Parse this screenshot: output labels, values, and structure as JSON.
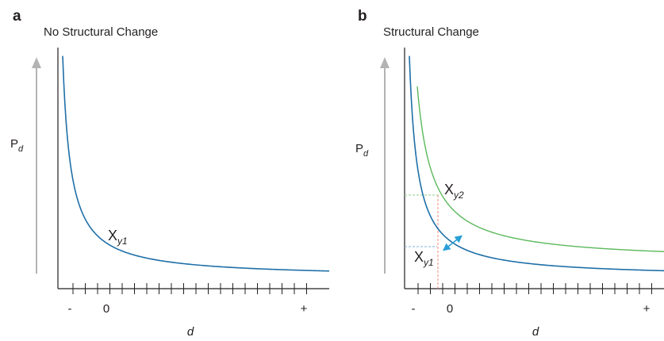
{
  "panel_a": {
    "letter": "a",
    "title": "No Structural Change",
    "ylabel_main": "P",
    "ylabel_sub": "d",
    "xlabel": "d",
    "tick_minus": "-",
    "tick_zero": "0",
    "tick_plus": "+",
    "curve_label_main": "X",
    "curve_label_sub": "y1"
  },
  "panel_b": {
    "letter": "b",
    "title": "Structural Change",
    "ylabel_main": "P",
    "ylabel_sub": "d",
    "xlabel": "d",
    "tick_minus": "-",
    "tick_zero": "0",
    "tick_plus": "+",
    "curve1_label_main": "X",
    "curve1_label_sub": "y1",
    "curve2_label_main": "X",
    "curve2_label_sub": "y2"
  },
  "colors": {
    "curve_y1": "#1f6fa8",
    "curve_y2": "#5cb85c",
    "label_y1": "#2a7ab8",
    "label_y2": "#a8d8a8",
    "arrow": "#2a9fd6",
    "axis": "#231f20",
    "up_arrow": "#b3b3b3",
    "guide_blue": "#7fb3d9",
    "guide_green": "#8fd08f",
    "guide_red": "#f08a7a"
  }
}
